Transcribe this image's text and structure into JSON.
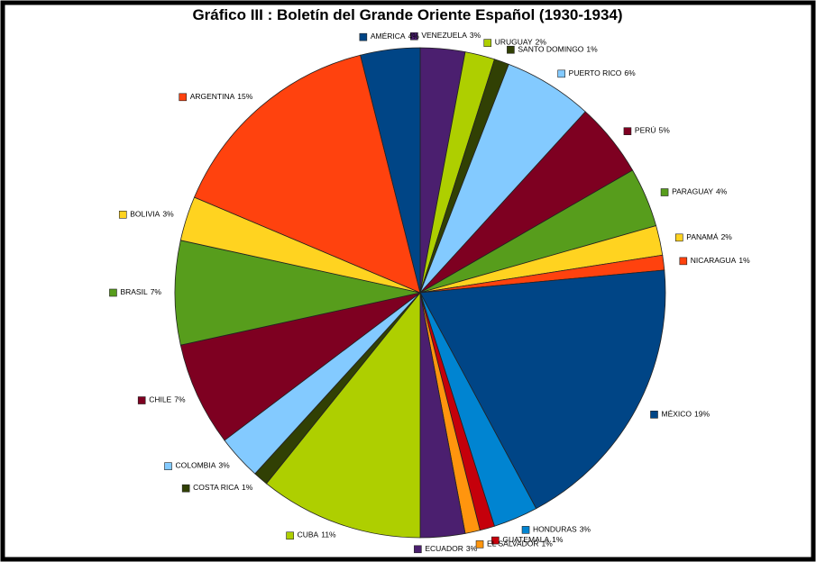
{
  "chart_data": {
    "type": "pie",
    "title": "Gráfico III : Boletín del Grande Oriente Español (1930-1934)",
    "categories": [
      "VENEZUELA",
      "URUGUAY",
      "SANTO DOMINGO",
      "PUERTO RICO",
      "PERÚ",
      "PARAGUAY",
      "PANAMÁ",
      "NICARAGUA",
      "MÉXICO",
      "HONDURAS",
      "GUATEMALA",
      "EL SALVADOR",
      "ECUADOR",
      "CUBA",
      "COSTA RICA",
      "COLOMBIA",
      "CHILE",
      "BRASIL",
      "BOLIVIA",
      "ARGENTINA",
      "AMÉRICA"
    ],
    "values": [
      3,
      2,
      1,
      6,
      5,
      4,
      2,
      1,
      19,
      3,
      1,
      1,
      3,
      11,
      1,
      3,
      7,
      7,
      3,
      15,
      4
    ],
    "value_labels": [
      "3%",
      "2%",
      "1%",
      "6%",
      "5%",
      "4%",
      "2%",
      "1%",
      "19%",
      "3%",
      "1%",
      "1%",
      "3%",
      "11%",
      "1%",
      "3%",
      "7%",
      "7%",
      "3%",
      "15%",
      "4%"
    ],
    "colors": [
      "#4b1f6f",
      "#aecf00",
      "#314004",
      "#83caff",
      "#7e0021",
      "#579d1c",
      "#ffd320",
      "#ff420e",
      "#004586",
      "#0084d1",
      "#c5000b",
      "#ff950e",
      "#4b1f6f",
      "#aecf00",
      "#314004",
      "#83caff",
      "#7e0021",
      "#579d1c",
      "#ffd320",
      "#ff420e",
      "#004586"
    ]
  }
}
